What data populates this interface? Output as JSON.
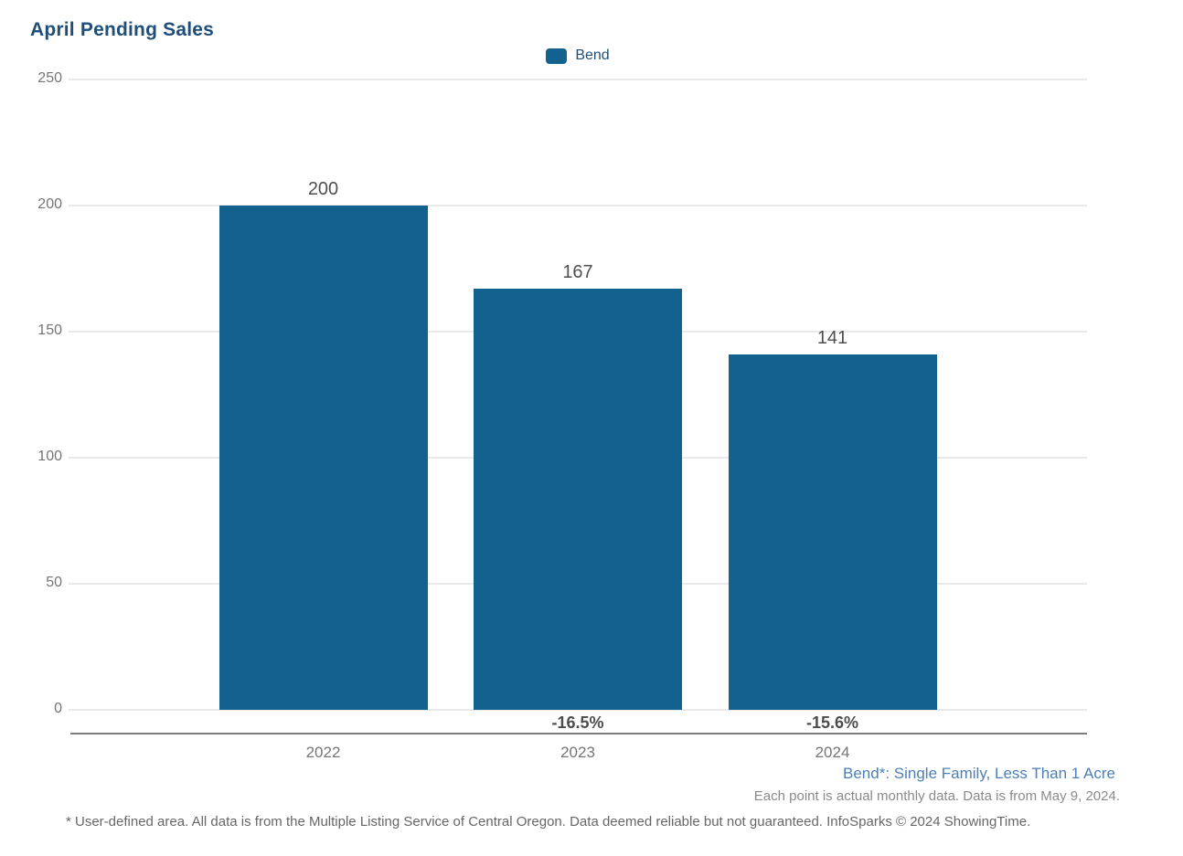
{
  "header": {
    "title": "April Pending Sales"
  },
  "legend": {
    "items": [
      {
        "label": "Bend",
        "color": "#12618f"
      }
    ]
  },
  "chart_data": {
    "type": "bar",
    "title": "April Pending Sales",
    "categories": [
      "2022",
      "2023",
      "2024"
    ],
    "series": [
      {
        "name": "Bend",
        "values": [
          200,
          167,
          141
        ]
      }
    ],
    "bar_labels": [
      "200",
      "167",
      "141"
    ],
    "change_labels": [
      "",
      "-16.5%",
      "-15.6%"
    ],
    "yticks": [
      0,
      50,
      100,
      150,
      200,
      250
    ],
    "ylim": [
      0,
      250
    ],
    "xlabel": "",
    "ylabel": "",
    "grid": true,
    "bar_color": "#12618f",
    "legend_position": "top-center"
  },
  "footnotes": {
    "series_definition": "Bend*: Single Family, Less Than 1 Acre",
    "data_note": "Each point is actual monthly data. Data is from May 9, 2024.",
    "disclaimer": "* User-defined area. All data is from the Multiple Listing Service of Central Oregon. Data deemed reliable but not guaranteed. InfoSparks © 2024 ShowingTime."
  },
  "colors": {
    "bar": "#12618f",
    "title_text": "#1f4e79",
    "definition_text": "#4d7fb7",
    "gridline": "#e9e9e9",
    "axis_line": "#7d7d7d",
    "tick_text": "#757575",
    "value_text": "#4f4f4f"
  }
}
